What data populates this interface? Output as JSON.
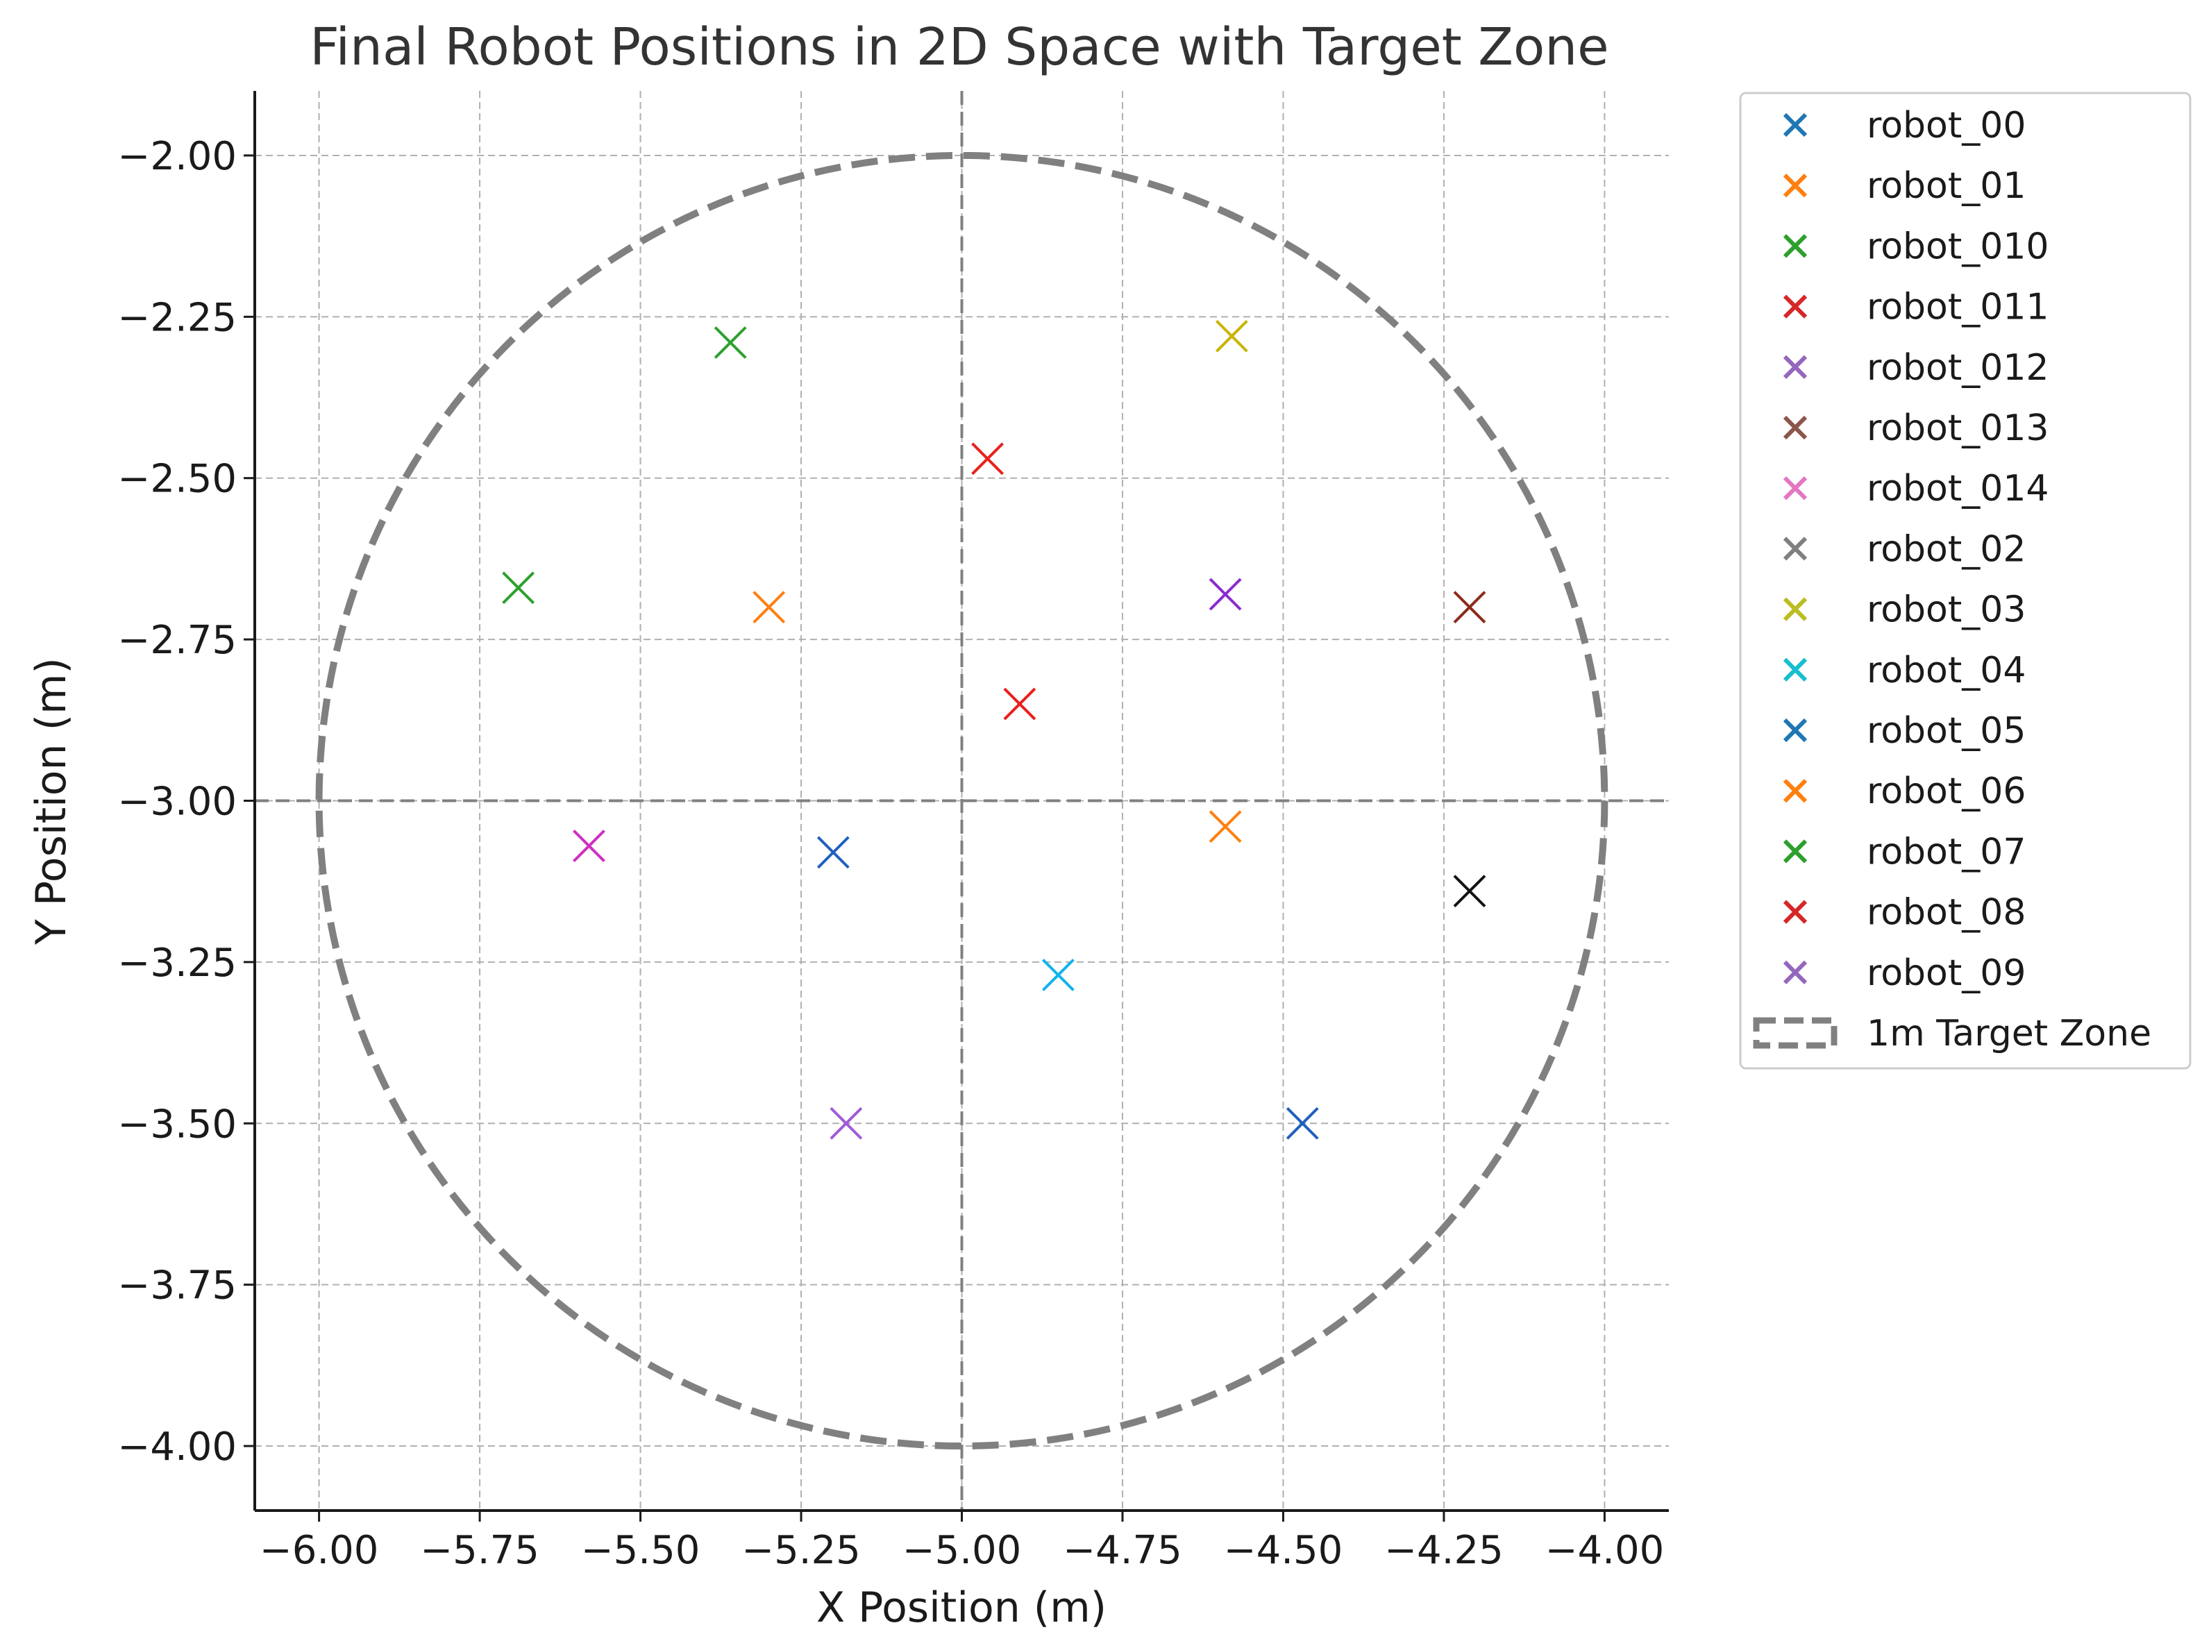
{
  "chart_data": {
    "type": "scatter",
    "title": "Final Robot Positions in 2D Space with Target Zone",
    "xlabel": "X Position (m)",
    "ylabel": "Y Position (m)",
    "xlim": [
      -6.1,
      -3.9
    ],
    "ylim": [
      -4.1,
      -1.9
    ],
    "x_ticks": [
      -6.0,
      -5.75,
      -5.5,
      -5.25,
      -5.0,
      -4.75,
      -4.5,
      -4.25,
      -4.0
    ],
    "x_tick_labels": [
      "−6.00",
      "−5.75",
      "−5.50",
      "−5.25",
      "−5.00",
      "−4.75",
      "−4.50",
      "−4.25",
      "−4.00"
    ],
    "y_ticks": [
      -2.0,
      -2.25,
      -2.5,
      -2.75,
      -3.0,
      -3.25,
      -3.5,
      -3.75,
      -4.0
    ],
    "y_tick_labels": [
      "−2.00",
      "−2.25",
      "−2.50",
      "−2.75",
      "−3.00",
      "−3.25",
      "−3.50",
      "−3.75",
      "−4.00"
    ],
    "grid": true,
    "legend_position": "outside-right",
    "series": [
      {
        "name": "robot_00",
        "color": "#1f77b4",
        "point_color": "#1f5fbf",
        "x": -4.47,
        "y": -3.5
      },
      {
        "name": "robot_01",
        "color": "#ff7f0e",
        "point_color": "#ff7f0e",
        "x": -4.59,
        "y": -3.04
      },
      {
        "name": "robot_010",
        "color": "#2ca02c",
        "point_color": "#2ca02c",
        "x": -5.36,
        "y": -2.29
      },
      {
        "name": "robot_011",
        "color": "#d62728",
        "point_color": "#e8201c",
        "x": -4.96,
        "y": -2.47
      },
      {
        "name": "robot_012",
        "color": "#9467bd",
        "point_color": "#8a2bd0",
        "x": -4.59,
        "y": -2.68
      },
      {
        "name": "robot_013",
        "color": "#8c564b",
        "point_color": "#8b2a1a",
        "x": -4.21,
        "y": -2.7
      },
      {
        "name": "robot_014",
        "color": "#e377c2",
        "point_color": "#d02ec0",
        "x": -5.58,
        "y": -3.07
      },
      {
        "name": "robot_02",
        "color": "#7f7f7f",
        "point_color": "#111111",
        "x": -4.21,
        "y": -3.14
      },
      {
        "name": "robot_03",
        "color": "#bcbd22",
        "point_color": "#c8b400",
        "x": -4.58,
        "y": -2.28
      },
      {
        "name": "robot_04",
        "color": "#17becf",
        "point_color": "#12b3ea",
        "x": -4.85,
        "y": -3.27
      },
      {
        "name": "robot_05",
        "color": "#1f77b4",
        "point_color": "#1f5fbf",
        "x": -5.2,
        "y": -3.08
      },
      {
        "name": "robot_06",
        "color": "#ff7f0e",
        "point_color": "#ff7f0e",
        "x": -5.3,
        "y": -2.7
      },
      {
        "name": "robot_07",
        "color": "#2ca02c",
        "point_color": "#2ca02c",
        "x": -5.69,
        "y": -2.67
      },
      {
        "name": "robot_08",
        "color": "#d62728",
        "point_color": "#e8201c",
        "x": -4.91,
        "y": -2.85
      },
      {
        "name": "robot_09",
        "color": "#9467bd",
        "point_color": "#a05ad8",
        "x": -5.18,
        "y": -3.5
      }
    ],
    "target_zone": {
      "name": "1m Target Zone",
      "center": [
        -5.0,
        -3.0
      ],
      "radius": 1.0,
      "color": "#808080",
      "style": "dashed"
    },
    "reference_lines": {
      "x": -5.0,
      "y": -3.0,
      "color": "#808080",
      "style": "dashed"
    }
  }
}
